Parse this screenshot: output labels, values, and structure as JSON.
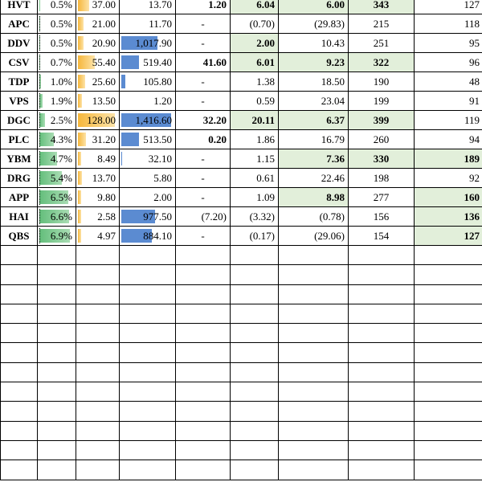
{
  "sheet": {
    "rows": [
      {
        "ticker": "HVT",
        "pct": "0.5%",
        "pct_fill": 0.01,
        "price": "37.00",
        "price_fill": 0.3,
        "val": "13.70",
        "val_fill": 0,
        "c4": "1.20",
        "c4_bold": true,
        "c5": "6.04",
        "c5_bold": true,
        "c5_green": true,
        "c6": "6.00",
        "c6_bold": true,
        "c6_green": true,
        "c7": "343",
        "c7_bold": true,
        "c7_green": true,
        "c8": "127",
        "c8_bold": false,
        "c8_green": false,
        "partial": true
      },
      {
        "ticker": "APC",
        "pct": "0.5%",
        "pct_fill": 0.01,
        "price": "21.00",
        "price_fill": 0.15,
        "val": "11.70",
        "val_fill": 0,
        "c4": "-",
        "c4_bold": false,
        "c5": "(0.70)",
        "c5_bold": false,
        "c5_green": false,
        "c6": "(29.83)",
        "c6_bold": false,
        "c6_green": false,
        "c7": "215",
        "c7_bold": false,
        "c7_green": false,
        "c8": "118",
        "c8_bold": false,
        "c8_green": false
      },
      {
        "ticker": "DDV",
        "pct": "0.5%",
        "pct_fill": 0.01,
        "price": "20.90",
        "price_fill": 0.15,
        "val": "1,017.90",
        "val_fill": 0.72,
        "c4": "-",
        "c4_bold": false,
        "c5": "2.00",
        "c5_bold": true,
        "c5_green": true,
        "c6": "10.43",
        "c6_bold": false,
        "c6_green": false,
        "c7": "251",
        "c7_bold": false,
        "c7_green": false,
        "c8": "95",
        "c8_bold": false,
        "c8_green": false
      },
      {
        "ticker": "CSV",
        "pct": "0.7%",
        "pct_fill": 0.03,
        "price": "55.40",
        "price_fill": 0.45,
        "val": "519.40",
        "val_fill": 0.36,
        "c4": "41.60",
        "c4_bold": true,
        "c5": "6.01",
        "c5_bold": true,
        "c5_green": true,
        "c6": "9.23",
        "c6_bold": true,
        "c6_green": true,
        "c7": "322",
        "c7_bold": true,
        "c7_green": true,
        "c8": "96",
        "c8_bold": false,
        "c8_green": false
      },
      {
        "ticker": "TDP",
        "pct": "1.0%",
        "pct_fill": 0.05,
        "price": "25.60",
        "price_fill": 0.2,
        "val": "105.80",
        "val_fill": 0.08,
        "c4": "-",
        "c4_bold": false,
        "c5": "1.38",
        "c5_bold": false,
        "c5_green": false,
        "c6": "18.50",
        "c6_bold": false,
        "c6_green": false,
        "c7": "190",
        "c7_bold": false,
        "c7_green": false,
        "c8": "48",
        "c8_bold": false,
        "c8_green": false
      },
      {
        "ticker": "VPS",
        "pct": "1.9%",
        "pct_fill": 0.1,
        "price": "13.50",
        "price_fill": 0.1,
        "val": "1.20",
        "val_fill": 0,
        "c4": "-",
        "c4_bold": false,
        "c5": "0.59",
        "c5_bold": false,
        "c5_green": false,
        "c6": "23.04",
        "c6_bold": false,
        "c6_green": false,
        "c7": "199",
        "c7_bold": false,
        "c7_green": false,
        "c8": "91",
        "c8_bold": false,
        "c8_green": false
      },
      {
        "ticker": "DGC",
        "pct": "2.5%",
        "pct_fill": 0.18,
        "price": "128.00",
        "price_fill": 1.0,
        "val": "1,416.60",
        "val_fill": 1.0,
        "c4": "32.20",
        "c4_bold": true,
        "c5": "20.11",
        "c5_bold": true,
        "c5_green": true,
        "c6": "6.37",
        "c6_bold": true,
        "c6_green": true,
        "c7": "399",
        "c7_bold": true,
        "c7_green": true,
        "c8": "119",
        "c8_bold": false,
        "c8_green": false
      },
      {
        "ticker": "PLC",
        "pct": "4.3%",
        "pct_fill": 0.45,
        "price": "31.20",
        "price_fill": 0.22,
        "val": "513.50",
        "val_fill": 0.36,
        "c4": "0.20",
        "c4_bold": true,
        "c5": "1.86",
        "c5_bold": false,
        "c5_green": false,
        "c6": "16.79",
        "c6_bold": false,
        "c6_green": false,
        "c7": "260",
        "c7_bold": false,
        "c7_green": false,
        "c8": "94",
        "c8_bold": false,
        "c8_green": false
      },
      {
        "ticker": "YBM",
        "pct": "4.7%",
        "pct_fill": 0.55,
        "price": "8.49",
        "price_fill": 0.05,
        "val": "32.10",
        "val_fill": 0.02,
        "c4": "-",
        "c4_bold": false,
        "c5": "1.15",
        "c5_bold": false,
        "c5_green": false,
        "c6": "7.36",
        "c6_bold": true,
        "c6_green": true,
        "c7": "330",
        "c7_bold": true,
        "c7_green": true,
        "c8": "189",
        "c8_bold": true,
        "c8_green": true
      },
      {
        "ticker": "DRG",
        "pct": "5.4%",
        "pct_fill": 0.7,
        "price": "13.70",
        "price_fill": 0.1,
        "val": "5.80",
        "val_fill": 0,
        "c4": "-",
        "c4_bold": false,
        "c5": "0.61",
        "c5_bold": false,
        "c5_green": false,
        "c6": "22.46",
        "c6_bold": false,
        "c6_green": false,
        "c7": "198",
        "c7_bold": false,
        "c7_green": false,
        "c8": "92",
        "c8_bold": false,
        "c8_green": false
      },
      {
        "ticker": "APP",
        "pct": "6.5%",
        "pct_fill": 0.9,
        "price": "9.80",
        "price_fill": 0.06,
        "val": "2.00",
        "val_fill": 0,
        "c4": "-",
        "c4_bold": false,
        "c5": "1.09",
        "c5_bold": false,
        "c5_green": false,
        "c6": "8.98",
        "c6_bold": true,
        "c6_green": true,
        "c7": "277",
        "c7_bold": false,
        "c7_green": false,
        "c8": "160",
        "c8_bold": true,
        "c8_green": true
      },
      {
        "ticker": "HAI",
        "pct": "6.6%",
        "pct_fill": 0.92,
        "price": "2.58",
        "price_fill": 0.01,
        "val": "977.50",
        "val_fill": 0.68,
        "c4": "(7.20)",
        "c4_bold": false,
        "c5": "(3.32)",
        "c5_bold": false,
        "c5_green": false,
        "c6": "(0.78)",
        "c6_bold": false,
        "c6_green": false,
        "c7": "156",
        "c7_bold": false,
        "c7_green": false,
        "c8": "136",
        "c8_bold": true,
        "c8_green": true
      },
      {
        "ticker": "QBS",
        "pct": "6.9%",
        "pct_fill": 0.95,
        "price": "4.97",
        "price_fill": 0.03,
        "val": "884.10",
        "val_fill": 0.62,
        "c4": "-",
        "c4_bold": false,
        "c5": "(0.17)",
        "c5_bold": false,
        "c5_green": false,
        "c6": "(29.06)",
        "c6_bold": false,
        "c6_green": false,
        "c7": "154",
        "c7_bold": false,
        "c7_green": false,
        "c8": "127",
        "c8_bold": true,
        "c8_green": true
      }
    ],
    "empty_rows": 12
  }
}
